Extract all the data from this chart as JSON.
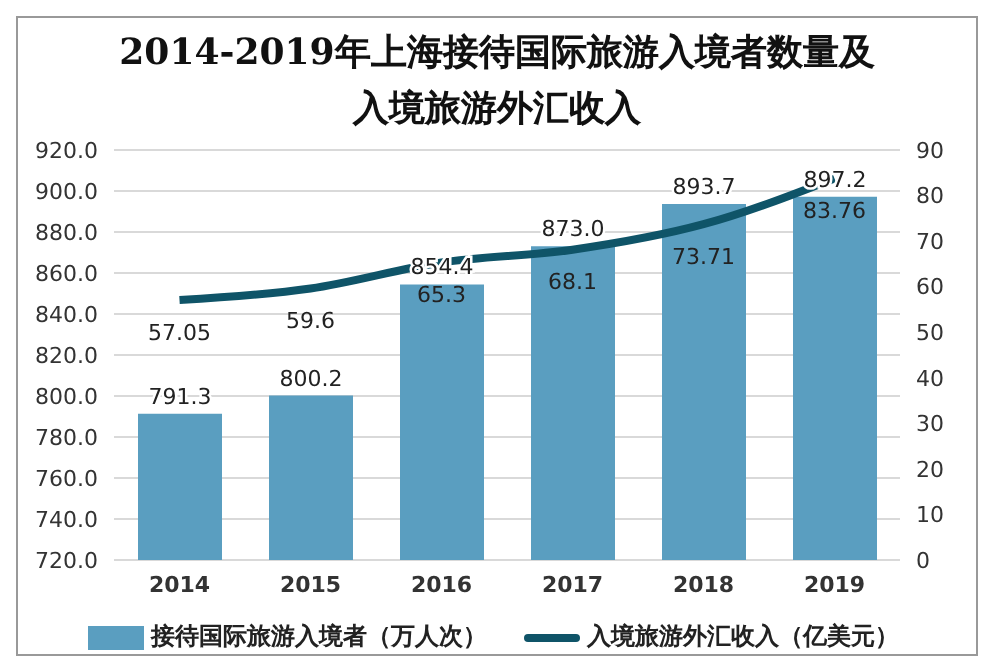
{
  "chart_data": {
    "type": "bar",
    "title": "2014-2019年上海接待国际旅游入境者数量及入境旅游外汇收入",
    "categories": [
      "2014",
      "2015",
      "2016",
      "2017",
      "2018",
      "2019"
    ],
    "series": [
      {
        "name": "接待国际旅游入境者（万人次）",
        "color": "#5a9ec0",
        "values": [
          791.3,
          800.2,
          854.4,
          873.0,
          893.7,
          897.2
        ],
        "value_labels": [
          "791.3",
          "800.2",
          "854.4",
          "873.0",
          "893.7",
          "897.2"
        ]
      },
      {
        "name": "入境旅游外汇收入（亿美元）",
        "type": "line",
        "axis": "y2",
        "color": "#0f5468",
        "values": [
          57.05,
          59.6,
          65.3,
          68.1,
          73.71,
          83.76
        ]
      }
    ],
    "ylim": [
      720,
      920
    ],
    "yticks": [
      {
        "value": 720,
        "label": "720.0"
      },
      {
        "value": 740,
        "label": "740.0"
      },
      {
        "value": 760,
        "label": "760.0"
      },
      {
        "value": 780,
        "label": "780.0"
      },
      {
        "value": 800,
        "label": "800.0"
      },
      {
        "value": 820,
        "label": "820.0"
      },
      {
        "value": 840,
        "label": "840.0"
      },
      {
        "value": 860,
        "label": "860.0"
      },
      {
        "value": 880,
        "label": "880.0"
      },
      {
        "value": 900,
        "label": "900.0"
      },
      {
        "value": 920,
        "label": "920.0"
      }
    ],
    "y2lim": [
      0,
      90
    ],
    "y2ticks": [
      0,
      10,
      20,
      30,
      40,
      50,
      60,
      70,
      80,
      90
    ],
    "data_labels": true,
    "grid": "y",
    "legend": "bottom",
    "marker": "none",
    "line_style": "solid"
  }
}
